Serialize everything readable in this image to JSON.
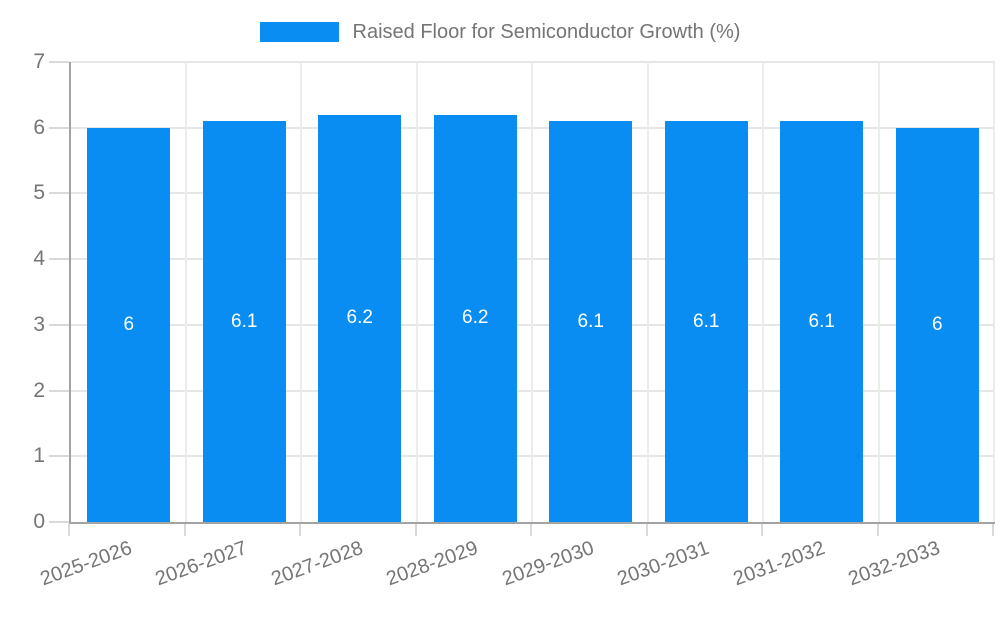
{
  "chart_data": {
    "type": "bar",
    "title": "Raised Floor for Semiconductor Growth (%)",
    "legend_position": "top",
    "categories": [
      "2025-2026",
      "2026-2027",
      "2027-2028",
      "2028-2029",
      "2029-2030",
      "2030-2031",
      "2031-2032",
      "2032-2033"
    ],
    "series": [
      {
        "name": "Raised Floor for Semiconductor Growth (%)",
        "values": [
          6,
          6.1,
          6.2,
          6.2,
          6.1,
          6.1,
          6.1,
          6
        ]
      }
    ],
    "value_labels": [
      "6",
      "6.1",
      "6.2",
      "6.2",
      "6.1",
      "6.1",
      "6.1",
      "6"
    ],
    "xlabel": "",
    "ylabel": "",
    "ylim": [
      0,
      7
    ],
    "y_ticks": [
      0,
      1,
      2,
      3,
      4,
      5,
      6,
      7
    ],
    "grid": true,
    "colors": {
      "bar": "#0a8df2",
      "value_label": "#ffffff",
      "axis_text": "#757575",
      "grid_line": "#e6e6e6",
      "vertical_grid_line": "#ececec",
      "axis_line": "#a3a3a3",
      "tick_mark": "#d9d9d9",
      "background": "#ffffff"
    }
  }
}
